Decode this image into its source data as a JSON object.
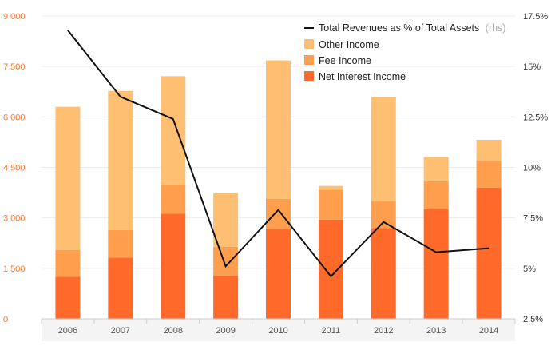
{
  "chart_data": {
    "type": "bar",
    "stacked": true,
    "categories": [
      "2006",
      "2007",
      "2008",
      "2009",
      "2010",
      "2011",
      "2012",
      "2013",
      "2014"
    ],
    "series": [
      {
        "name": "Net Interest Income",
        "color": "#ff6a2b",
        "values": [
          1250,
          1820,
          3130,
          1290,
          2670,
          2950,
          2700,
          3260,
          3900
        ]
      },
      {
        "name": "Fee Income",
        "color": "#ff9f4d",
        "values": [
          800,
          820,
          860,
          850,
          900,
          890,
          800,
          830,
          800
        ]
      },
      {
        "name": "Other Income",
        "color": "#ffbf73",
        "values": [
          4250,
          4130,
          3220,
          1590,
          4110,
          110,
          3100,
          720,
          620
        ]
      }
    ],
    "line_series": {
      "name": "Total Revenues as % of Total Assets",
      "axis_note": "(rhs)",
      "color": "#111111",
      "axis": "right",
      "values": [
        16.8,
        13.5,
        12.4,
        5.1,
        7.9,
        4.6,
        7.3,
        5.8,
        6.0
      ]
    },
    "y_left": {
      "ylim": [
        0,
        9000
      ],
      "tick_values": [
        0,
        1500,
        3000,
        4500,
        6000,
        7500,
        9000
      ],
      "tick_labels": [
        "0",
        "1 500",
        "3 000",
        "4 500",
        "6 000",
        "7 500",
        "9 000"
      ]
    },
    "y_right": {
      "ylim": [
        2.5,
        17.5
      ],
      "tick_values": [
        2.5,
        5,
        7.5,
        10,
        12.5,
        15,
        17.5
      ],
      "tick_labels": [
        "2.5%",
        "5%",
        "7.5%",
        "10%",
        "12.5%",
        "15%",
        "17.5%"
      ]
    },
    "grid": {
      "horizontal": true,
      "color": "#ebebeb"
    },
    "legend_position": "top-right",
    "legend_order": [
      "line",
      "Other Income",
      "Fee Income",
      "Net Interest Income"
    ]
  }
}
